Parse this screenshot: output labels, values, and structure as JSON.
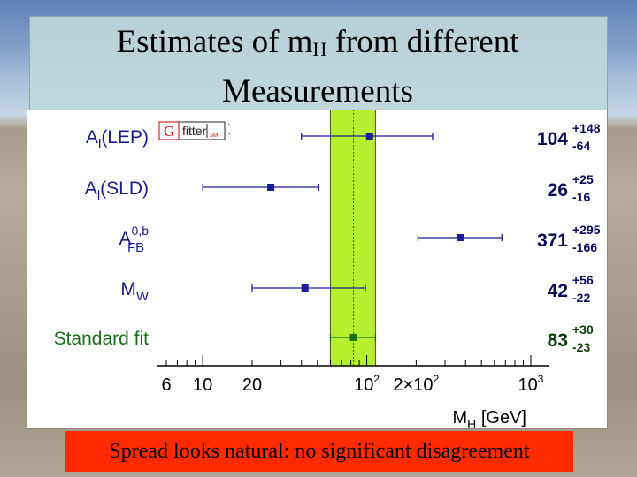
{
  "slide": {
    "title_main": "Estimates of m",
    "title_sub": "H",
    "title_rest": " from different",
    "title_line2": "Measurements",
    "caption": "Spread looks natural: no significant disagreement"
  },
  "logo": {
    "letter": "G",
    "word": "fitter",
    "tag": "SM"
  },
  "colors": {
    "band": "#b4f02d",
    "measurement": "#1c1c9e",
    "fit": "#1d6b1d",
    "caption_bg": "#ff2a00",
    "title_bg": "#c0d8da"
  },
  "chart_data": {
    "type": "scatter",
    "xscale": "log",
    "xlim": [
      6,
      1000
    ],
    "xlabel": "M",
    "xlabel_sub": "H",
    "xlabel_unit": " [GeV]",
    "xticks": [
      {
        "value": 6,
        "base": "6",
        "sup": ""
      },
      {
        "value": 10,
        "base": "10",
        "sup": ""
      },
      {
        "value": 20,
        "base": "20",
        "sup": ""
      },
      {
        "value": 100,
        "base": "10",
        "sup": "2"
      },
      {
        "value": 200,
        "base": "2×10",
        "sup": "2"
      },
      {
        "value": 1000,
        "base": "10",
        "sup": "3"
      }
    ],
    "band": {
      "low": 60,
      "high": 113
    },
    "measurements": [
      {
        "name": "A",
        "sub": "l",
        "sup": "",
        "suffix": "(LEP)",
        "value": 104,
        "err_plus": 148,
        "err_minus": 64,
        "val_text": "104",
        "plus_text": "+148",
        "minus_text": "-64"
      },
      {
        "name": "A",
        "sub": "l",
        "sup": "",
        "suffix": "(SLD)",
        "value": 26,
        "err_plus": 25,
        "err_minus": 16,
        "val_text": "26",
        "plus_text": "+25",
        "minus_text": "-16"
      },
      {
        "name": "A",
        "sub": "FB",
        "sup": "0,b",
        "suffix": "",
        "value": 371,
        "err_plus": 295,
        "err_minus": 166,
        "val_text": "371",
        "plus_text": "+295",
        "minus_text": "-166"
      },
      {
        "name": "M",
        "sub": "W",
        "sup": "",
        "suffix": "",
        "value": 42,
        "err_plus": 56,
        "err_minus": 22,
        "val_text": "42",
        "plus_text": "+56",
        "minus_text": "-22"
      }
    ],
    "fit": {
      "label": "Standard fit",
      "value": 83,
      "err_plus": 30,
      "err_minus": 23,
      "val_text": "83",
      "plus_text": "+30",
      "minus_text": "-23"
    }
  }
}
